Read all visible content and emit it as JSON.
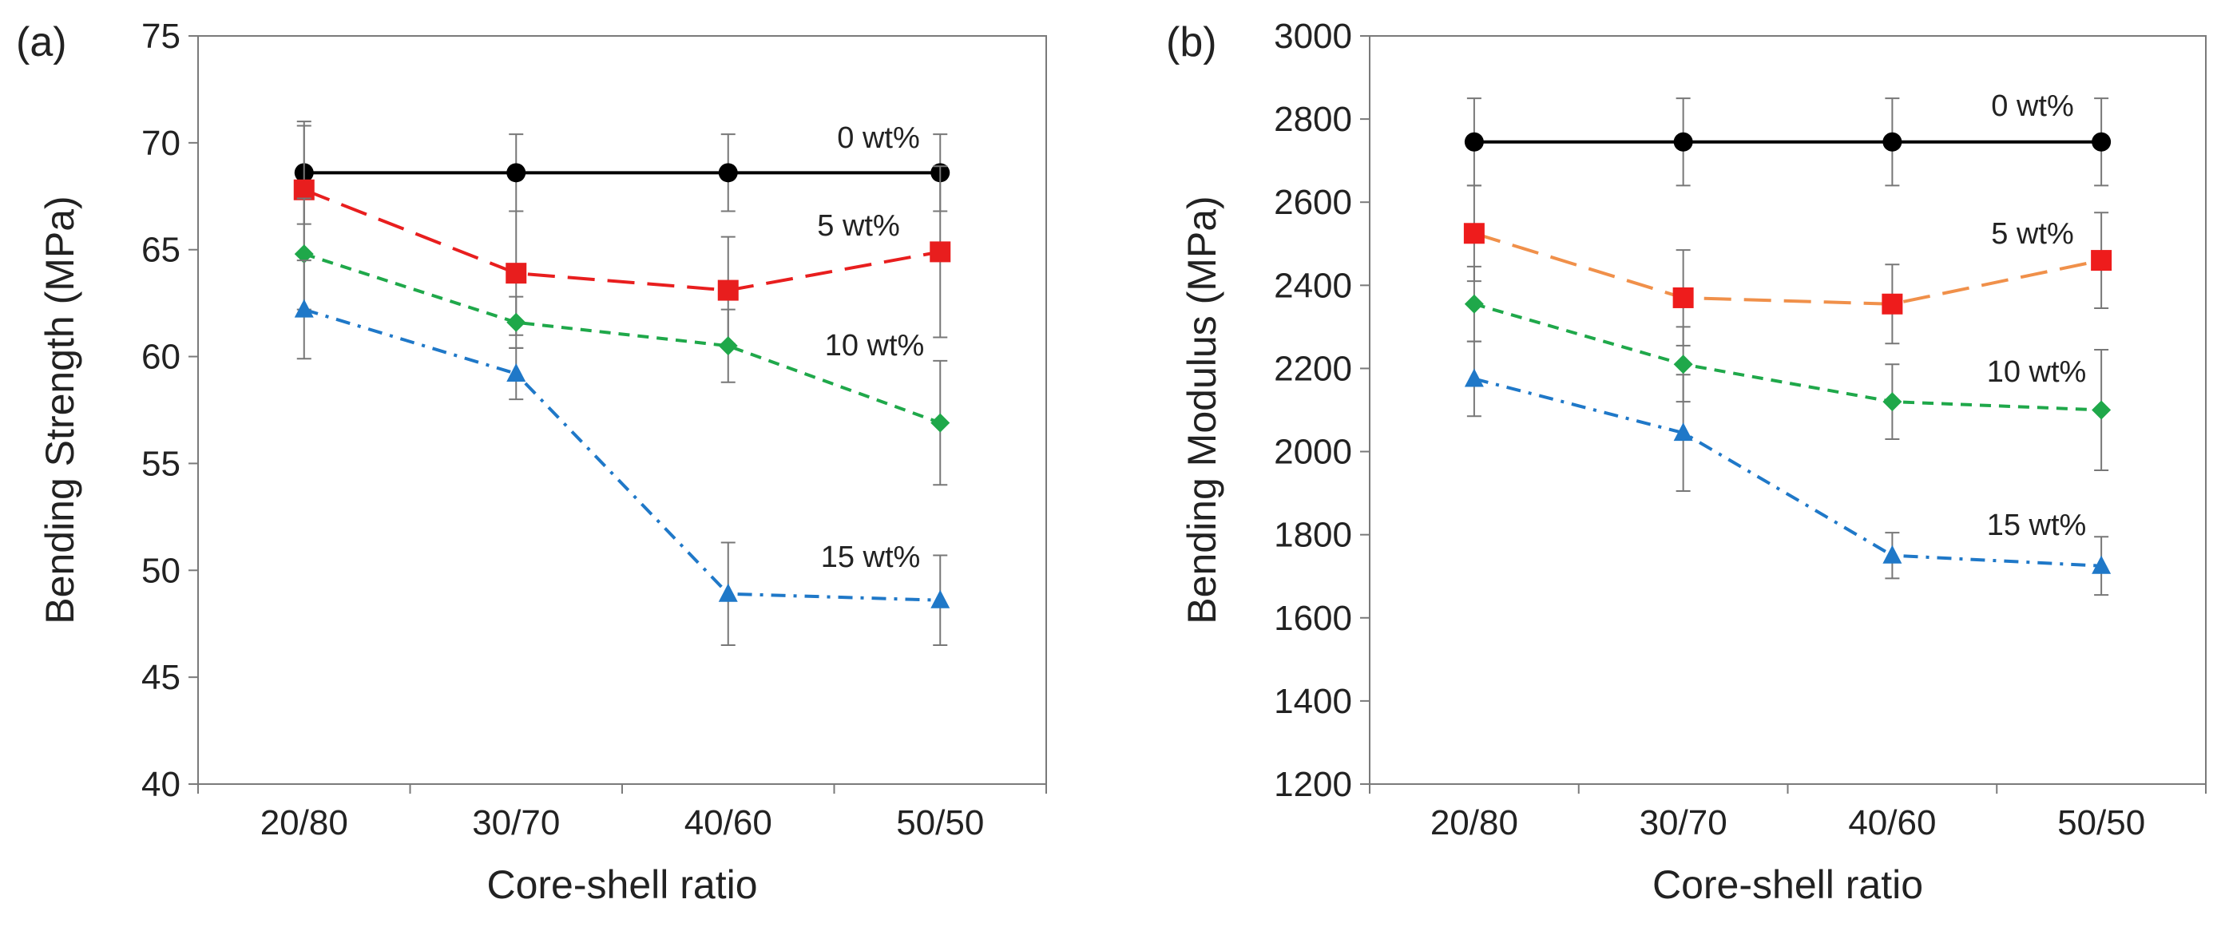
{
  "chart_data": [
    {
      "type": "line",
      "panel_label": "(a)",
      "title": "",
      "xlabel": "Core-shell ratio",
      "ylabel": "Bending Strength (MPa)",
      "categories": [
        "20/80",
        "30/70",
        "40/60",
        "50/50"
      ],
      "ylim": [
        40,
        75
      ],
      "yticks": [
        40,
        45,
        50,
        55,
        60,
        65,
        70,
        75
      ],
      "grid": false,
      "series": [
        {
          "name": "0 wt%",
          "label": "0 wt%",
          "color": "#000000",
          "marker": "circle",
          "dash": "solid",
          "values": [
            68.6,
            68.6,
            68.6,
            68.6
          ],
          "errors": [
            2.4,
            1.8,
            1.8,
            1.8
          ]
        },
        {
          "name": "5 wt%",
          "label": "5 wt%",
          "color": "#e81e1e",
          "marker": "square",
          "dash": "long",
          "values": [
            67.8,
            63.9,
            63.1,
            64.9
          ],
          "errors": [
            3.0,
            2.9,
            2.5,
            4.0
          ]
        },
        {
          "name": "10 wt%",
          "label": "10 wt%",
          "color": "#1fa84a",
          "marker": "diamond",
          "dash": "short",
          "values": [
            64.8,
            61.6,
            60.5,
            56.9
          ],
          "errors": [
            2.6,
            1.2,
            1.7,
            2.9
          ]
        },
        {
          "name": "15 wt%",
          "label": "15 wt%",
          "color": "#1f78c8",
          "marker": "triangle",
          "dash": "dashdot",
          "values": [
            62.2,
            59.2,
            48.9,
            48.6
          ],
          "errors": [
            2.3,
            1.2,
            2.4,
            2.1
          ]
        }
      ]
    },
    {
      "type": "line",
      "panel_label": "(b)",
      "title": "",
      "xlabel": "Core-shell ratio",
      "ylabel": "Bending Modulus  (MPa)",
      "categories": [
        "20/80",
        "30/70",
        "40/60",
        "50/50"
      ],
      "ylim": [
        1200,
        3000
      ],
      "yticks": [
        1200,
        1400,
        1600,
        1800,
        2000,
        2200,
        2400,
        2600,
        2800,
        3000
      ],
      "grid": false,
      "series": [
        {
          "name": "0 wt%",
          "label": "0 wt%",
          "color": "#000000",
          "marker": "circle",
          "dash": "solid",
          "values": [
            2745,
            2745,
            2745,
            2745
          ],
          "errors": [
            105,
            105,
            105,
            105
          ]
        },
        {
          "name": "5 wt%",
          "label": "5 wt%",
          "color": "#f0904a",
          "marker": "square",
          "dash": "long",
          "values": [
            2525,
            2370,
            2355,
            2460
          ],
          "errors": [
            115,
            115,
            95,
            115
          ]
        },
        {
          "name": "10 wt%",
          "label": "10 wt%",
          "color": "#1fa84a",
          "marker": "diamond",
          "dash": "short",
          "values": [
            2355,
            2210,
            2120,
            2100
          ],
          "errors": [
            90,
            90,
            90,
            145
          ]
        },
        {
          "name": "15 wt%",
          "label": "15 wt%",
          "color": "#1f78c8",
          "marker": "triangle",
          "dash": "dashdot",
          "values": [
            2175,
            2045,
            1750,
            1725
          ],
          "errors": [
            90,
            140,
            55,
            70
          ]
        }
      ]
    }
  ]
}
